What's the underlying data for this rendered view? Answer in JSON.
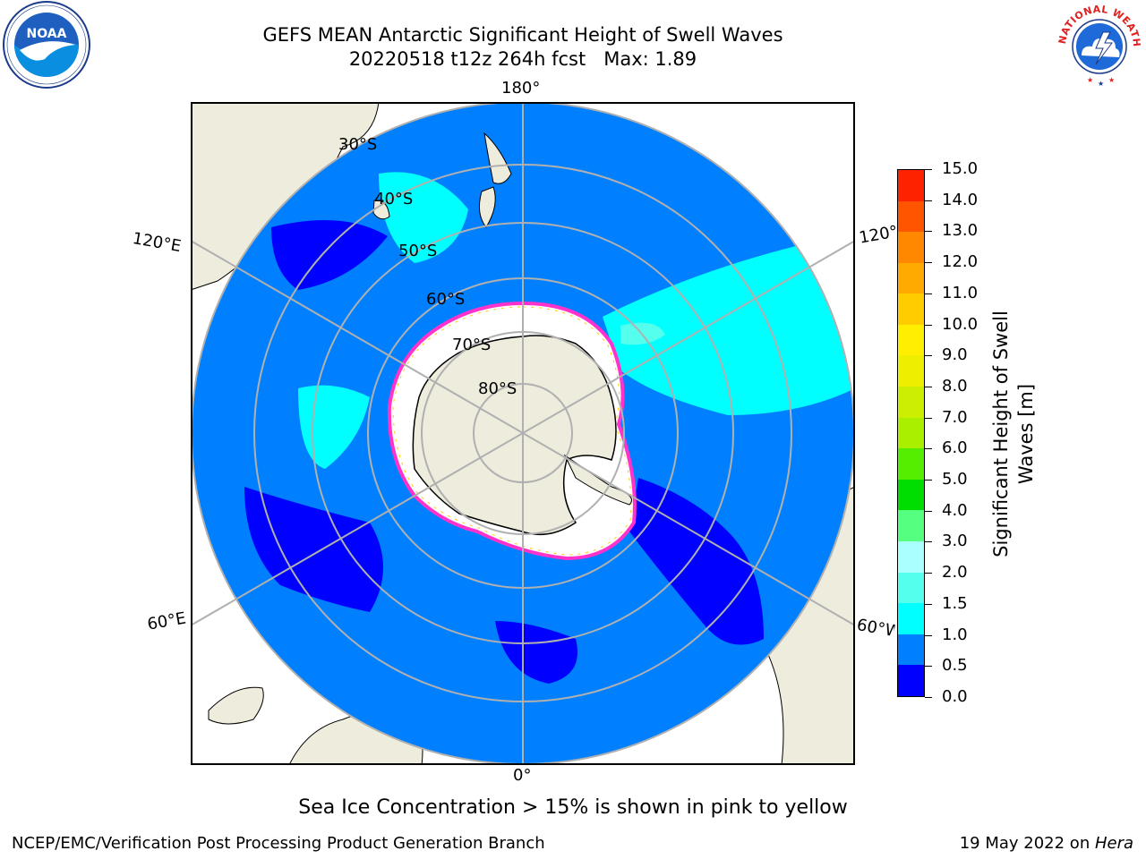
{
  "title": {
    "line1": "GEFS MEAN Antarctic Significant Height of Swell Waves",
    "line2": "20220518 t12z 264h fcst   Max: 1.89"
  },
  "logos": {
    "left": {
      "name": "noaa-logo",
      "text": "NOAA"
    },
    "right": {
      "name": "national-weather-service-logo",
      "text": "NATIONAL WEATHER SERVICE"
    }
  },
  "map": {
    "projection": "south-polar-stereographic",
    "longitude_labels": {
      "top": "180°",
      "bottom": "0°",
      "upper_left": "120°E",
      "upper_right": "120°W",
      "lower_left": "60°E",
      "lower_right": "60°W"
    },
    "latitude_labels": [
      "30°S",
      "40°S",
      "50°S",
      "60°S",
      "70°S",
      "80°S"
    ],
    "colors": {
      "ocean_main": "#0080ff",
      "low_swell": "#0000ff",
      "mid_swell": "#00ffff",
      "land": "#eeecdc",
      "sea_ice": "#ffffff",
      "ice_edge": "#ff33cc",
      "ice_edge_yellow": "#ffcc00",
      "grid": "#b0b0b0"
    }
  },
  "colorbar": {
    "label": "Significant Height of Swell Waves [m]",
    "label_line1": "Significant Height of Swell",
    "label_line2": "Waves [m]",
    "ticks": [
      "0.0",
      "0.5",
      "1.0",
      "1.5",
      "2.0",
      "3.0",
      "4.0",
      "5.0",
      "6.0",
      "7.0",
      "8.0",
      "9.0",
      "10.0",
      "11.0",
      "12.0",
      "13.0",
      "14.0",
      "15.0"
    ],
    "colors": [
      "#0000ff",
      "#0080ff",
      "#00ffff",
      "#55ffee",
      "#aaffff",
      "#55ff80",
      "#00dd00",
      "#55ee00",
      "#aaee00",
      "#ccee00",
      "#eeee00",
      "#ffee00",
      "#ffcc00",
      "#ffaa00",
      "#ff8800",
      "#ff5500",
      "#ff2200"
    ]
  },
  "footnote": "Sea Ice Concentration > 15% is shown in pink to yellow",
  "credits": {
    "left": "NCEP/EMC/Verification Post Processing Product Generation Branch",
    "right_prefix": "19 May 2022 on ",
    "right_host": "Hera"
  }
}
